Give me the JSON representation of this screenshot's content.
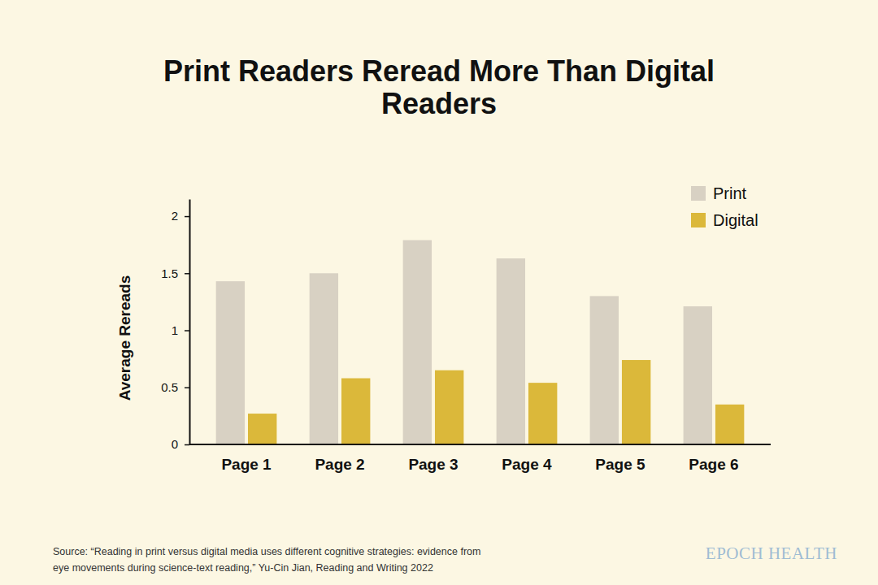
{
  "chart_data": {
    "type": "bar",
    "title": "Print Readers Reread More Than Digital Readers",
    "y_label": "Average Rereads",
    "categories": [
      "Page 1",
      "Page 2",
      "Page 3",
      "Page 4",
      "Page 5",
      "Page 6"
    ],
    "series": [
      {
        "name": "Print",
        "color": "#d8d1c3",
        "values": [
          1.43,
          1.5,
          1.79,
          1.63,
          1.3,
          1.21
        ]
      },
      {
        "name": "Digital",
        "color": "#dbb83a",
        "values": [
          0.27,
          0.58,
          0.65,
          0.54,
          0.74,
          0.35
        ]
      }
    ],
    "ylim": [
      0,
      2.15
    ],
    "yticks": [
      0,
      0.5,
      1,
      1.5,
      2
    ],
    "grid": false,
    "legend": "top-right",
    "source": [
      "Source: “Reading in print versus digital media uses different cognitive strategies: evidence from",
      "eye movements during science-text reading,” Yu-Cin Jian, Reading and Writing 2022"
    ],
    "credit": "EPOCH HEALTH"
  }
}
